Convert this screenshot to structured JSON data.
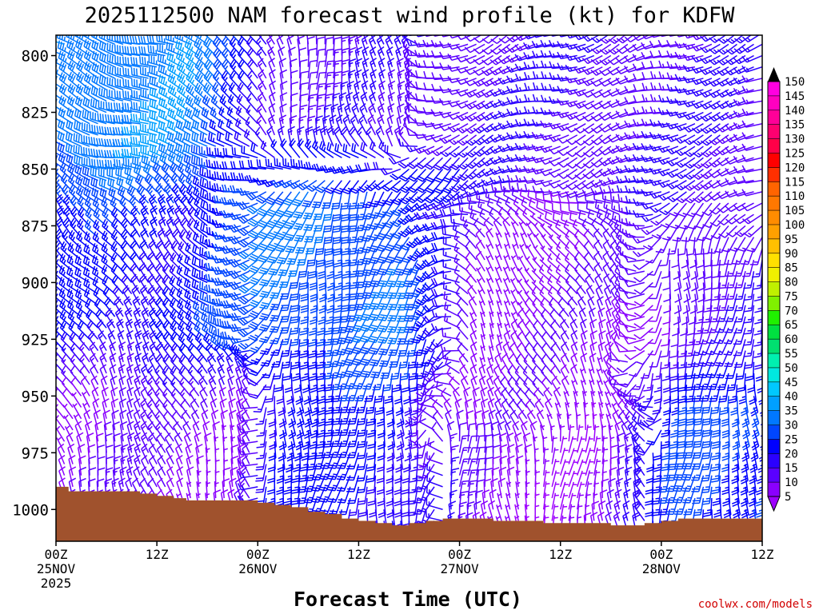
{
  "chart_data": {
    "type": "wind-barb-time-height",
    "title": "2025112500 NAM forecast wind profile (kt) for KDFW",
    "xlabel": "Forecast Time (UTC)",
    "ylabel": "",
    "units": "kt",
    "credit": "coolwx.com/models",
    "y_axis": {
      "min": 1014,
      "max": 791,
      "ticks": [
        800,
        825,
        850,
        875,
        900,
        925,
        950,
        975,
        1000
      ]
    },
    "x_axis": {
      "hours": [
        0,
        84
      ],
      "ticks": [
        {
          "hour": 0,
          "label": "00Z",
          "date": "25NOV",
          "year": "2025"
        },
        {
          "hour": 12,
          "label": "12Z",
          "date": "",
          "year": ""
        },
        {
          "hour": 24,
          "label": "00Z",
          "date": "26NOV",
          "year": ""
        },
        {
          "hour": 36,
          "label": "12Z",
          "date": "",
          "year": ""
        },
        {
          "hour": 48,
          "label": "00Z",
          "date": "27NOV",
          "year": ""
        },
        {
          "hour": 60,
          "label": "12Z",
          "date": "",
          "year": ""
        },
        {
          "hour": 72,
          "label": "00Z",
          "date": "28NOV",
          "year": ""
        },
        {
          "hour": 84,
          "label": "12Z",
          "date": "",
          "year": ""
        }
      ]
    },
    "colorbar": {
      "levels": [
        5,
        10,
        15,
        20,
        25,
        30,
        35,
        40,
        45,
        50,
        55,
        60,
        65,
        70,
        75,
        80,
        85,
        90,
        95,
        100,
        105,
        110,
        115,
        120,
        125,
        130,
        135,
        140,
        145,
        150
      ],
      "colors": [
        "#8a00ff",
        "#5a00ff",
        "#2b00ff",
        "#0000ff",
        "#0046ff",
        "#0078ff",
        "#00a0ff",
        "#00c8ff",
        "#00e8e0",
        "#00f0b0",
        "#00e070",
        "#00e040",
        "#20f000",
        "#80f000",
        "#c0f000",
        "#f0f000",
        "#ffe000",
        "#ffc000",
        "#ffa000",
        "#ff8c00",
        "#ff7800",
        "#ff6400",
        "#ff3000",
        "#ff0000",
        "#ff0048",
        "#ff0070",
        "#ff0098",
        "#ff00c0",
        "#ff00e0",
        "#ff00ff"
      ],
      "top_color": "#000000",
      "bottom_color": "#9d00ff"
    },
    "surface_pressure": [
      {
        "h": 0,
        "p": 990
      },
      {
        "h": 1.5,
        "p": 992
      },
      {
        "h": 10,
        "p": 993
      },
      {
        "h": 12,
        "p": 994
      },
      {
        "h": 14,
        "p": 995
      },
      {
        "h": 15.5,
        "p": 996
      },
      {
        "h": 22,
        "p": 996
      },
      {
        "h": 24,
        "p": 997
      },
      {
        "h": 26,
        "p": 998
      },
      {
        "h": 28,
        "p": 999
      },
      {
        "h": 30,
        "p": 1001
      },
      {
        "h": 32,
        "p": 1002
      },
      {
        "h": 34,
        "p": 1004
      },
      {
        "h": 36,
        "p": 1005
      },
      {
        "h": 38,
        "p": 1006
      },
      {
        "h": 40,
        "p": 1007
      },
      {
        "h": 42,
        "p": 1006
      },
      {
        "h": 44,
        "p": 1005
      },
      {
        "h": 46,
        "p": 1004
      },
      {
        "h": 52,
        "p": 1005
      },
      {
        "h": 58,
        "p": 1006
      },
      {
        "h": 66,
        "p": 1007
      },
      {
        "h": 70,
        "p": 1006
      },
      {
        "h": 72,
        "p": 1005
      },
      {
        "h": 74,
        "p": 1004
      },
      {
        "h": 84,
        "p": 1002
      }
    ],
    "time_step_hours": 1,
    "pressure_levels": [
      790,
      795,
      800,
      805,
      810,
      815,
      820,
      825,
      830,
      835,
      840,
      845,
      850,
      855,
      860,
      865,
      870,
      875,
      880,
      885,
      890,
      895,
      900,
      905,
      910,
      915,
      920,
      925,
      930,
      935,
      940,
      945,
      950,
      955,
      960,
      965,
      970,
      975,
      980,
      985,
      990,
      995,
      1000,
      1005,
      1010
    ],
    "wind_regimes": [
      {
        "hours": [
          0,
          22
        ],
        "p": [
          790,
          860
        ],
        "dir_deg": 290,
        "speed_kt": 33
      },
      {
        "hours": [
          0,
          22
        ],
        "p": [
          860,
          940
        ],
        "dir_deg": 320,
        "speed_kt": 22
      },
      {
        "hours": [
          0,
          22
        ],
        "p": [
          940,
          1010
        ],
        "dir_deg": 340,
        "speed_kt": 10
      },
      {
        "hours": [
          22,
          40
        ],
        "p": [
          790,
          850
        ],
        "dir_deg": 350,
        "speed_kt": 13
      },
      {
        "hours": [
          22,
          46
        ],
        "p": [
          850,
          930
        ],
        "dir_deg": 195,
        "speed_kt": 30
      },
      {
        "hours": [
          26,
          46
        ],
        "p": [
          930,
          1010
        ],
        "dir_deg": 185,
        "speed_kt": 22
      },
      {
        "hours": [
          46,
          84
        ],
        "p": [
          790,
          870
        ],
        "dir_deg": 250,
        "speed_kt": 14
      },
      {
        "hours": [
          46,
          70
        ],
        "p": [
          870,
          960
        ],
        "dir_deg": 330,
        "speed_kt": 8
      },
      {
        "hours": [
          46,
          70
        ],
        "p": [
          960,
          1010
        ],
        "dir_deg": 0,
        "speed_kt": 7
      },
      {
        "hours": [
          70,
          84
        ],
        "p": [
          870,
          940
        ],
        "dir_deg": 185,
        "speed_kt": 14
      },
      {
        "hours": [
          70,
          84
        ],
        "p": [
          940,
          1010
        ],
        "dir_deg": 180,
        "speed_kt": 27
      }
    ]
  }
}
